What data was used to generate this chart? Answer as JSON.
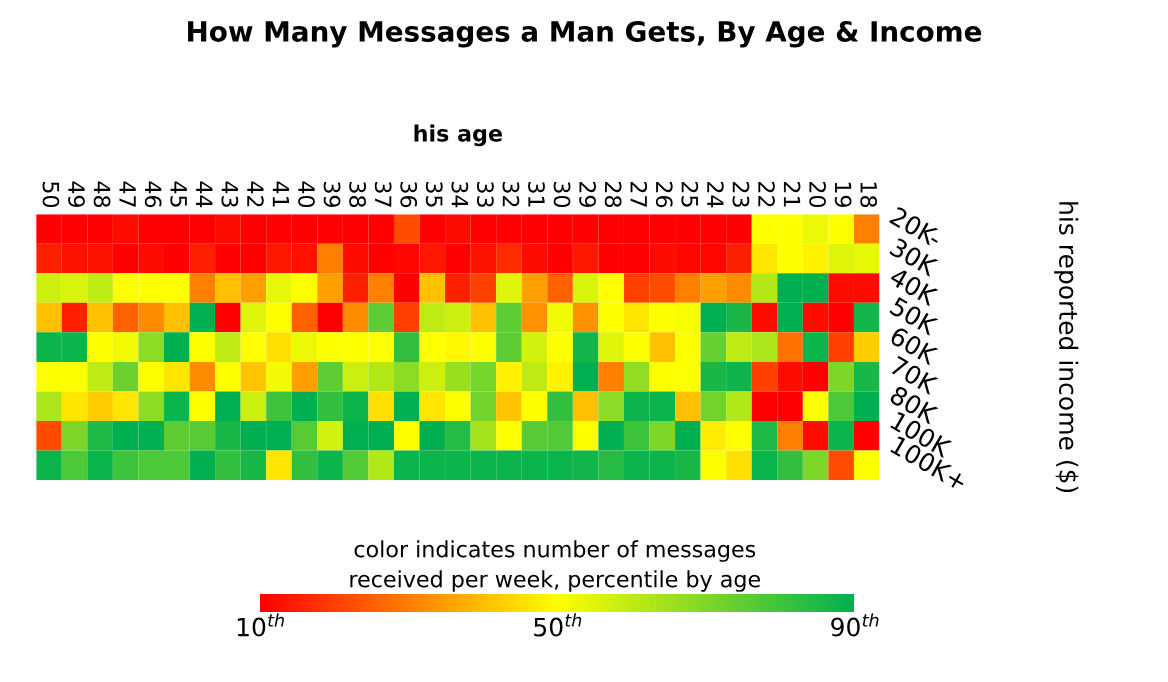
{
  "chart_data": {
    "type": "heatmap",
    "title": "How Many Messages a Man Gets, By Age & Income",
    "xlabel": "his age",
    "ylabel": "his reported income ($)",
    "clabel": "color indicates number of messages\nreceived per week, percentile by age",
    "categories": [
      "50",
      "49",
      "48",
      "47",
      "46",
      "45",
      "44",
      "43",
      "42",
      "41",
      "40",
      "39",
      "38",
      "37",
      "36",
      "35",
      "34",
      "33",
      "32",
      "31",
      "30",
      "29",
      "28",
      "27",
      "26",
      "25",
      "24",
      "23",
      "22",
      "21",
      "20",
      "19",
      "18"
    ],
    "y_categories": [
      "20K-",
      "30K",
      "40K",
      "50K",
      "60K",
      "70K",
      "80K",
      "100K",
      "100K+"
    ],
    "colors": [
      "#ff0000",
      "#ffff00",
      "#00b050"
    ],
    "clim": [
      10,
      90
    ],
    "cticks": [
      {
        "value": 10,
        "label": "10$^{th}$"
      },
      {
        "value": 50,
        "label": "50$^{th}$"
      },
      {
        "value": 90,
        "label": "90$^{th}$"
      }
    ],
    "cells": [
      [
        10,
        10,
        10,
        12,
        10,
        10,
        10,
        12,
        10,
        10,
        10,
        10,
        10,
        10,
        22,
        10,
        12,
        10,
        10,
        10,
        10,
        10,
        10,
        10,
        10,
        10,
        10,
        10,
        50,
        50,
        53,
        50,
        30
      ],
      [
        15,
        13,
        13,
        10,
        12,
        10,
        15,
        10,
        10,
        14,
        13,
        30,
        12,
        10,
        11,
        14,
        10,
        13,
        17,
        12,
        10,
        14,
        10,
        10,
        12,
        11,
        11,
        15,
        46,
        50,
        48,
        55,
        54
      ],
      [
        58,
        56,
        60,
        50,
        50,
        50,
        30,
        40,
        35,
        54,
        50,
        35,
        15,
        30,
        10,
        40,
        15,
        20,
        55,
        35,
        25,
        56,
        50,
        20,
        22,
        30,
        35,
        32,
        62,
        90,
        90,
        12,
        12
      ],
      [
        40,
        15,
        40,
        25,
        32,
        40,
        90,
        10,
        55,
        50,
        25,
        10,
        32,
        75,
        20,
        60,
        58,
        40,
        75,
        33,
        52,
        33,
        50,
        46,
        50,
        51,
        90,
        86,
        12,
        90,
        12,
        10,
        87
      ],
      [
        88,
        88,
        50,
        52,
        68,
        90,
        50,
        60,
        50,
        45,
        53,
        50,
        50,
        50,
        82,
        50,
        49,
        50,
        75,
        57,
        50,
        87,
        55,
        50,
        40,
        50,
        74,
        60,
        63,
        28,
        88,
        20,
        42
      ],
      [
        50,
        50,
        60,
        73,
        50,
        46,
        32,
        50,
        41,
        52,
        35,
        75,
        58,
        62,
        68,
        58,
        66,
        71,
        48,
        60,
        48,
        90,
        30,
        67,
        50,
        50,
        86,
        88,
        20,
        12,
        10,
        70,
        86
      ],
      [
        63,
        46,
        42,
        46,
        68,
        88,
        50,
        90,
        58,
        80,
        90,
        82,
        88,
        45,
        90,
        46,
        50,
        72,
        41,
        50,
        82,
        40,
        68,
        88,
        88,
        40,
        72,
        62,
        10,
        10,
        50,
        78,
        90
      ],
      [
        22,
        70,
        85,
        90,
        90,
        75,
        76,
        86,
        90,
        90,
        76,
        57,
        90,
        90,
        50,
        90,
        84,
        64,
        50,
        76,
        77,
        50,
        90,
        80,
        70,
        90,
        47,
        50,
        85,
        30,
        12,
        88,
        10
      ],
      [
        88,
        78,
        88,
        80,
        78,
        78,
        90,
        82,
        86,
        46,
        82,
        88,
        77,
        62,
        88,
        88,
        88,
        88,
        88,
        88,
        88,
        87,
        84,
        88,
        88,
        86,
        50,
        45,
        88,
        82,
        70,
        22,
        50
      ]
    ]
  }
}
